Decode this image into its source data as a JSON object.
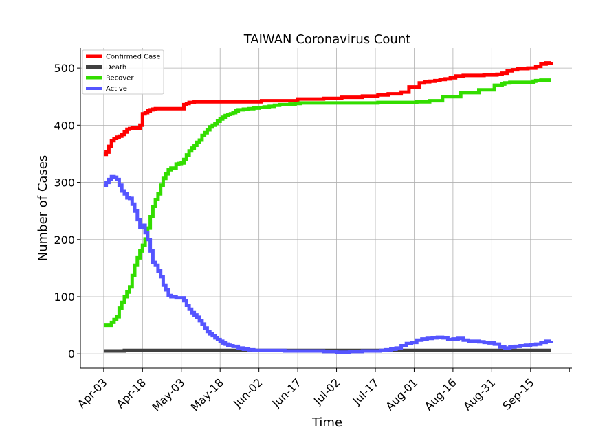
{
  "chart_data": {
    "type": "line",
    "title": "TAIWAN Coronavirus Count",
    "xlabel": "Time",
    "ylabel": "Number of Cases",
    "ylim": [
      -25,
      535
    ],
    "yticks": [
      0,
      100,
      200,
      300,
      400,
      500
    ],
    "grid": true,
    "legend_position": "top-left",
    "x_ticks": [
      "Apr-03",
      "Apr-18",
      "May-03",
      "May-18",
      "Jun-02",
      "Jun-17",
      "Jul-02",
      "Jul-17",
      "Aug-01",
      "Aug-16",
      "Aug-31",
      "Sep-15"
    ],
    "x_tick_days": [
      0,
      15,
      30,
      45,
      60,
      75,
      90,
      105,
      120,
      135,
      150,
      165
    ],
    "x_range_days": [
      -9,
      181
    ],
    "series": [
      {
        "name": "Confirmed Case",
        "color": "#ff0000",
        "points": [
          [
            0,
            349
          ],
          [
            1,
            353
          ],
          [
            2,
            363
          ],
          [
            3,
            373
          ],
          [
            4,
            377
          ],
          [
            5,
            379
          ],
          [
            6,
            381
          ],
          [
            7,
            384
          ],
          [
            8,
            388
          ],
          [
            9,
            393
          ],
          [
            10,
            394
          ],
          [
            11,
            395
          ],
          [
            13,
            395
          ],
          [
            14,
            400
          ],
          [
            15,
            420
          ],
          [
            16,
            422
          ],
          [
            17,
            425
          ],
          [
            18,
            427
          ],
          [
            19,
            428
          ],
          [
            20,
            429
          ],
          [
            30,
            429
          ],
          [
            31,
            436
          ],
          [
            32,
            438
          ],
          [
            33,
            440
          ],
          [
            35,
            441
          ],
          [
            60,
            441
          ],
          [
            61,
            443
          ],
          [
            73,
            443
          ],
          [
            75,
            446
          ],
          [
            84,
            446
          ],
          [
            85,
            447
          ],
          [
            91,
            447
          ],
          [
            92,
            449
          ],
          [
            99,
            449
          ],
          [
            100,
            451
          ],
          [
            105,
            451
          ],
          [
            106,
            453
          ],
          [
            109,
            453
          ],
          [
            110,
            455
          ],
          [
            114,
            455
          ],
          [
            115,
            458
          ],
          [
            117,
            458
          ],
          [
            118,
            467
          ],
          [
            121,
            467
          ],
          [
            122,
            474
          ],
          [
            124,
            476
          ],
          [
            126,
            477
          ],
          [
            128,
            478
          ],
          [
            130,
            480
          ],
          [
            132,
            481
          ],
          [
            134,
            483
          ],
          [
            136,
            486
          ],
          [
            139,
            487
          ],
          [
            145,
            487
          ],
          [
            147,
            488
          ],
          [
            152,
            489
          ],
          [
            154,
            491
          ],
          [
            156,
            495
          ],
          [
            158,
            497
          ],
          [
            160,
            499
          ],
          [
            164,
            500
          ],
          [
            167,
            503
          ],
          [
            169,
            507
          ],
          [
            171,
            509
          ],
          [
            173,
            510
          ]
        ]
      },
      {
        "name": "Death",
        "color": "#404040",
        "points": [
          [
            0,
            5
          ],
          [
            7,
            5
          ],
          [
            8,
            6
          ],
          [
            173,
            6
          ]
        ]
      },
      {
        "name": "Recover",
        "color": "#33dd00",
        "points": [
          [
            0,
            50
          ],
          [
            2,
            50
          ],
          [
            3,
            55
          ],
          [
            4,
            60
          ],
          [
            5,
            65
          ],
          [
            6,
            80
          ],
          [
            7,
            90
          ],
          [
            8,
            100
          ],
          [
            9,
            108
          ],
          [
            10,
            117
          ],
          [
            11,
            137
          ],
          [
            12,
            155
          ],
          [
            13,
            168
          ],
          [
            14,
            180
          ],
          [
            15,
            190
          ],
          [
            16,
            201
          ],
          [
            17,
            220
          ],
          [
            18,
            240
          ],
          [
            19,
            258
          ],
          [
            20,
            270
          ],
          [
            21,
            280
          ],
          [
            22,
            295
          ],
          [
            23,
            307
          ],
          [
            24,
            315
          ],
          [
            25,
            322
          ],
          [
            26,
            325
          ],
          [
            27,
            325
          ],
          [
            28,
            332
          ],
          [
            29,
            333
          ],
          [
            30,
            334
          ],
          [
            31,
            340
          ],
          [
            32,
            348
          ],
          [
            33,
            355
          ],
          [
            34,
            360
          ],
          [
            35,
            365
          ],
          [
            36,
            370
          ],
          [
            37,
            374
          ],
          [
            38,
            382
          ],
          [
            39,
            387
          ],
          [
            40,
            392
          ],
          [
            41,
            397
          ],
          [
            42,
            400
          ],
          [
            43,
            403
          ],
          [
            44,
            407
          ],
          [
            45,
            411
          ],
          [
            46,
            414
          ],
          [
            47,
            417
          ],
          [
            48,
            419
          ],
          [
            49,
            420
          ],
          [
            50,
            422
          ],
          [
            51,
            425
          ],
          [
            52,
            427
          ],
          [
            54,
            428
          ],
          [
            56,
            429
          ],
          [
            58,
            430
          ],
          [
            60,
            431
          ],
          [
            62,
            432
          ],
          [
            64,
            433
          ],
          [
            66,
            435
          ],
          [
            68,
            436
          ],
          [
            70,
            436
          ],
          [
            72,
            437
          ],
          [
            74,
            438
          ],
          [
            76,
            439
          ],
          [
            105,
            439
          ],
          [
            106,
            440
          ],
          [
            120,
            440
          ],
          [
            121,
            441
          ],
          [
            125,
            441
          ],
          [
            126,
            443
          ],
          [
            130,
            443
          ],
          [
            131,
            450
          ],
          [
            137,
            450
          ],
          [
            138,
            457
          ],
          [
            144,
            457
          ],
          [
            145,
            462
          ],
          [
            150,
            462
          ],
          [
            151,
            470
          ],
          [
            154,
            472
          ],
          [
            155,
            474
          ],
          [
            157,
            475
          ],
          [
            165,
            475
          ],
          [
            166,
            477
          ],
          [
            167,
            478
          ],
          [
            169,
            479
          ],
          [
            173,
            479
          ]
        ]
      },
      {
        "name": "Active",
        "color": "#5555ff",
        "points": [
          [
            0,
            294
          ],
          [
            1,
            300
          ],
          [
            2,
            305
          ],
          [
            3,
            310
          ],
          [
            4,
            309
          ],
          [
            5,
            305
          ],
          [
            6,
            295
          ],
          [
            7,
            285
          ],
          [
            8,
            280
          ],
          [
            9,
            273
          ],
          [
            10,
            272
          ],
          [
            11,
            262
          ],
          [
            12,
            250
          ],
          [
            13,
            235
          ],
          [
            14,
            222
          ],
          [
            15,
            225
          ],
          [
            16,
            212
          ],
          [
            17,
            200
          ],
          [
            18,
            180
          ],
          [
            19,
            160
          ],
          [
            20,
            155
          ],
          [
            21,
            145
          ],
          [
            22,
            135
          ],
          [
            23,
            120
          ],
          [
            24,
            112
          ],
          [
            25,
            102
          ],
          [
            26,
            100
          ],
          [
            27,
            100
          ],
          [
            28,
            98
          ],
          [
            29,
            98
          ],
          [
            30,
            98
          ],
          [
            31,
            93
          ],
          [
            32,
            85
          ],
          [
            33,
            78
          ],
          [
            34,
            72
          ],
          [
            35,
            68
          ],
          [
            36,
            64
          ],
          [
            37,
            58
          ],
          [
            38,
            52
          ],
          [
            39,
            45
          ],
          [
            40,
            39
          ],
          [
            41,
            35
          ],
          [
            42,
            32
          ],
          [
            43,
            28
          ],
          [
            44,
            25
          ],
          [
            45,
            22
          ],
          [
            46,
            19
          ],
          [
            47,
            17
          ],
          [
            48,
            15
          ],
          [
            49,
            14
          ],
          [
            50,
            13
          ],
          [
            52,
            10
          ],
          [
            54,
            8
          ],
          [
            56,
            7
          ],
          [
            58,
            6
          ],
          [
            60,
            6
          ],
          [
            70,
            5
          ],
          [
            80,
            5
          ],
          [
            85,
            4
          ],
          [
            90,
            3
          ],
          [
            95,
            4
          ],
          [
            100,
            5
          ],
          [
            105,
            5
          ],
          [
            107,
            6
          ],
          [
            109,
            7
          ],
          [
            111,
            8
          ],
          [
            113,
            10
          ],
          [
            115,
            14
          ],
          [
            117,
            18
          ],
          [
            119,
            20
          ],
          [
            121,
            24
          ],
          [
            123,
            26
          ],
          [
            125,
            27
          ],
          [
            127,
            28
          ],
          [
            129,
            29
          ],
          [
            131,
            28
          ],
          [
            133,
            25
          ],
          [
            135,
            26
          ],
          [
            137,
            27
          ],
          [
            139,
            24
          ],
          [
            141,
            22
          ],
          [
            143,
            22
          ],
          [
            145,
            21
          ],
          [
            147,
            20
          ],
          [
            149,
            19
          ],
          [
            151,
            17
          ],
          [
            153,
            12
          ],
          [
            155,
            10
          ],
          [
            157,
            12
          ],
          [
            159,
            13
          ],
          [
            161,
            14
          ],
          [
            163,
            15
          ],
          [
            165,
            16
          ],
          [
            167,
            17
          ],
          [
            169,
            20
          ],
          [
            171,
            22
          ],
          [
            173,
            23
          ]
        ]
      }
    ]
  }
}
